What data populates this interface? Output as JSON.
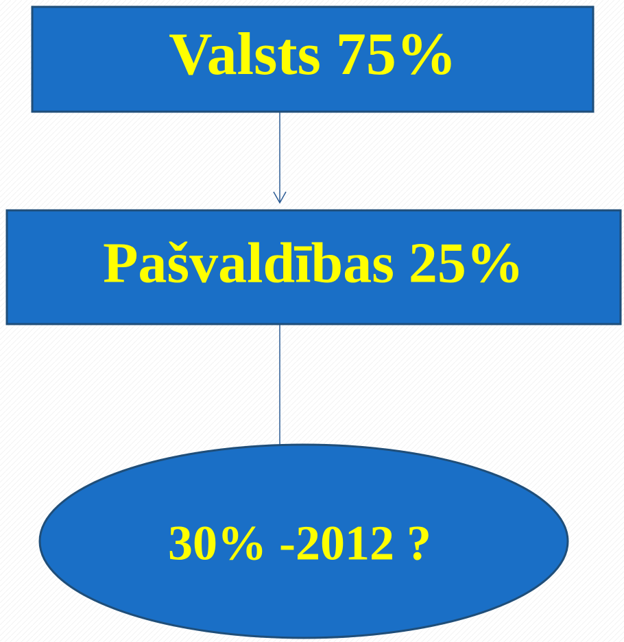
{
  "nodes": [
    {
      "label": "Valsts 75%"
    },
    {
      "label": "Pašvaldības 25%"
    },
    {
      "label": "30% -2012 ?"
    }
  ]
}
